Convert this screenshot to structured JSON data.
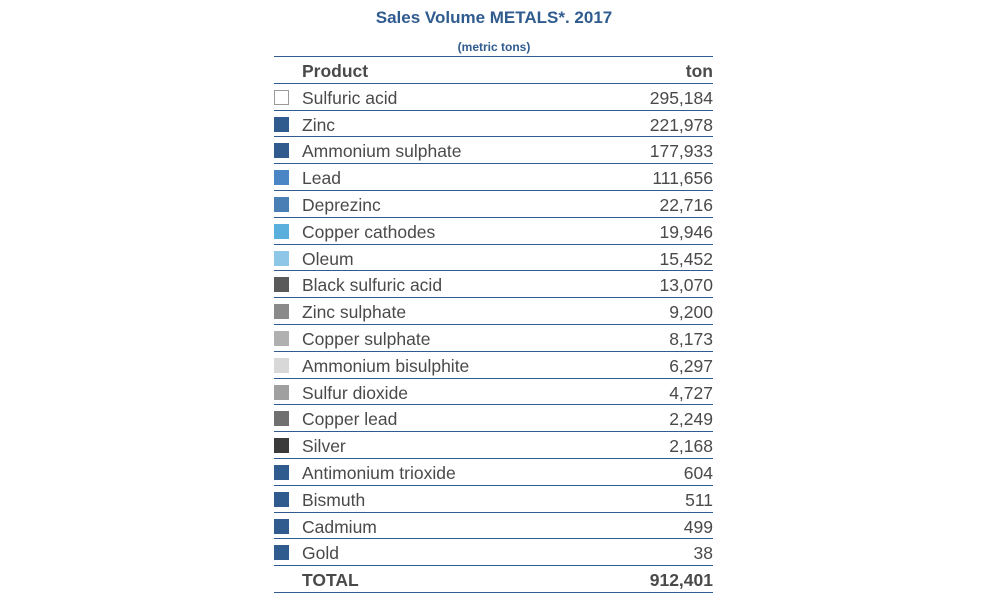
{
  "chart_data": {
    "type": "table",
    "title": "Sales Volume METALS*. 2017",
    "subtitle": "(metric tons)",
    "columns": [
      "Product",
      "ton"
    ],
    "rows": [
      {
        "label": "Sulfuric acid",
        "value": "295,184",
        "color": "#ffffff"
      },
      {
        "label": "Zinc",
        "value": "221,978",
        "color": "#2f5b8f"
      },
      {
        "label": "Ammonium sulphate",
        "value": "177,933",
        "color": "#2f5b8f"
      },
      {
        "label": "Lead",
        "value": "111,656",
        "color": "#4a86c5"
      },
      {
        "label": "Deprezinc",
        "value": "22,716",
        "color": "#4a7fb5"
      },
      {
        "label": "Copper cathodes",
        "value": "19,946",
        "color": "#5aafdc"
      },
      {
        "label": "Oleum",
        "value": "15,452",
        "color": "#8dc6e6"
      },
      {
        "label": "Black sulfuric acid",
        "value": "13,070",
        "color": "#5a5a5a"
      },
      {
        "label": "Zinc sulphate",
        "value": "9,200",
        "color": "#8a8a8a"
      },
      {
        "label": "Copper sulphate",
        "value": "8,173",
        "color": "#b0b0b0"
      },
      {
        "label": "Ammonium bisulphite",
        "value": "6,297",
        "color": "#d8d8d8"
      },
      {
        "label": "Sulfur dioxide",
        "value": "4,727",
        "color": "#a0a0a0"
      },
      {
        "label": "Copper lead",
        "value": "2,249",
        "color": "#707070"
      },
      {
        "label": "Silver",
        "value": "2,168",
        "color": "#3a3a3a"
      },
      {
        "label": "Antimonium trioxide",
        "value": "604",
        "color": "#2f5b8f"
      },
      {
        "label": "Bismuth",
        "value": "511",
        "color": "#2f5b8f"
      },
      {
        "label": "Cadmium",
        "value": "499",
        "color": "#2f5b8f"
      },
      {
        "label": "Gold",
        "value": "38",
        "color": "#2f5b8f"
      }
    ],
    "total": {
      "label": "TOTAL",
      "value": "912,401"
    }
  }
}
